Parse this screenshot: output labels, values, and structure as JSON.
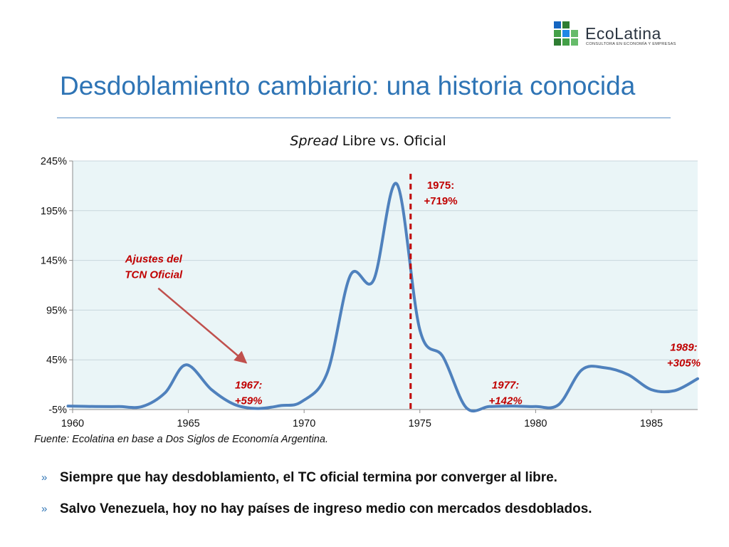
{
  "logo": {
    "name": "EcoLatina",
    "tagline": "CONSULTORA EN ECONOMÍA Y EMPRESAS",
    "colors": [
      "#2e7d32",
      "#43a047",
      "#1e88e5",
      "#1565c0",
      "#66bb6a"
    ]
  },
  "slide": {
    "title": "Desdoblamiento cambiario: una historia conocida",
    "source": "Fuente: Ecolatina en base a Dos Siglos de Economía Argentina.",
    "bullet_marker": "»",
    "bullets": [
      "Siempre que hay desdoblamiento, el TC oficial termina por converger al libre.",
      "Salvo Venezuela, hoy no hay países de ingreso medio con mercados desdoblados."
    ]
  },
  "chart_data": {
    "type": "line",
    "title_italic": "Spread",
    "title_rest": " Libre vs. Oficial",
    "xlabel": "",
    "ylabel": "",
    "xlim": [
      1960,
      1987
    ],
    "ylim": [
      -5,
      245
    ],
    "x_ticks": [
      1960,
      1965,
      1970,
      1975,
      1980,
      1985
    ],
    "y_ticks": [
      -5,
      45,
      95,
      145,
      195,
      245
    ],
    "y_tick_suffix": "%",
    "grid": true,
    "series": [
      {
        "color": "#4f81bd",
        "points": [
          [
            1959.8,
            -1.5
          ],
          [
            1961,
            -2
          ],
          [
            1962,
            -2
          ],
          [
            1963,
            -2
          ],
          [
            1964,
            12
          ],
          [
            1964.9,
            40
          ],
          [
            1966,
            15
          ],
          [
            1967,
            0
          ],
          [
            1968,
            -4
          ],
          [
            1969,
            -1
          ],
          [
            1969.9,
            3
          ],
          [
            1971,
            32
          ],
          [
            1972,
            130
          ],
          [
            1973,
            125
          ],
          [
            1974,
            222
          ],
          [
            1975,
            75
          ],
          [
            1976,
            48
          ],
          [
            1977,
            -3
          ],
          [
            1978,
            -2
          ],
          [
            1979,
            -1.5
          ],
          [
            1980,
            -2
          ],
          [
            1981,
            0
          ],
          [
            1982,
            35
          ],
          [
            1983,
            37
          ],
          [
            1984,
            30
          ],
          [
            1985,
            15
          ],
          [
            1986,
            14
          ],
          [
            1987,
            26
          ]
        ]
      }
    ],
    "vline": {
      "x": 1974.6,
      "color": "#c00000",
      "style": "dashed"
    },
    "annotations": [
      {
        "lines": [
          "1975:",
          "+719%"
        ],
        "x": 1975.9,
        "y": 217,
        "color": "#c00000",
        "italic": false
      },
      {
        "lines": [
          "1967:",
          "+59%"
        ],
        "x": 1967.6,
        "y": 16,
        "color": "#c00000",
        "italic": true
      },
      {
        "lines": [
          "1977:",
          "+142%"
        ],
        "x": 1978.7,
        "y": 16,
        "color": "#c00000",
        "italic": true
      },
      {
        "lines": [
          "1989:",
          "+305%"
        ],
        "x": 1986.4,
        "y": 54,
        "color": "#c00000",
        "italic": true
      },
      {
        "lines": [
          "Ajustes del",
          "TCN Oficial"
        ],
        "x": 1963.5,
        "y": 143,
        "color": "#c00000",
        "italic": true
      }
    ],
    "arrow": {
      "from": [
        1963.7,
        117
      ],
      "to": [
        1967.5,
        42
      ],
      "color": "#c0504d"
    },
    "colors": {
      "plot_bg": "#eaf5f7",
      "grid": "#c8d6dc",
      "axis": "#8c8c8c",
      "annotation": "#c00000"
    }
  }
}
